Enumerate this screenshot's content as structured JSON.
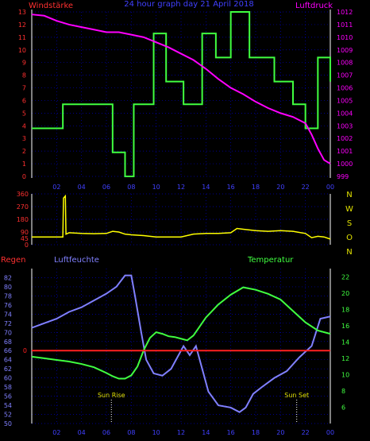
{
  "header": {
    "left": "Windstärke",
    "center": "24 hour graph day  21 April 2018",
    "right": "Luftdruck"
  },
  "colors": {
    "wind": "#40ff40",
    "pressure": "#ff00ff",
    "direction": "#ffff00",
    "humidity": "#8080ff",
    "temperature": "#40ff40",
    "rain": "#ff2020",
    "grid": "#0000c0",
    "left_axis": "#ff3030",
    "humidity_axis": "#8080ff",
    "pressure_axis": "#ff00ff",
    "temp_axis": "#40ff40",
    "x_axis": "#4040ff",
    "compass": "#e0e000"
  },
  "x_ticks": [
    "02",
    "04",
    "06",
    "08",
    "10",
    "12",
    "14",
    "16",
    "18",
    "20",
    "22",
    "00"
  ],
  "compass": [
    "N",
    "W",
    "S",
    "O",
    "N"
  ],
  "chart_data": [
    {
      "type": "line",
      "title": "24 hour graph day  21 April 2018",
      "xlabel": "",
      "xlim": [
        0,
        24
      ],
      "left_axis": {
        "label": "Windstärke",
        "ylim": [
          0,
          13
        ],
        "ticks": [
          "0",
          "1",
          "2",
          "3",
          "4",
          "5",
          "6",
          "7",
          "8",
          "9",
          "10",
          "11",
          "12",
          "13"
        ]
      },
      "right_axis": {
        "label": "Luftdruck",
        "ylim": [
          999,
          1012
        ],
        "ticks": [
          "999",
          "1000",
          "1001",
          "1002",
          "1003",
          "1004",
          "1005",
          "1006",
          "1007",
          "1008",
          "1009",
          "1010",
          "1011",
          "1012"
        ]
      },
      "series": [
        {
          "name": "Windstärke",
          "axis": "left",
          "style": "step",
          "x": [
            0,
            2.5,
            6.5,
            7.5,
            8.2,
            9.8,
            10.8,
            12.2,
            13.7,
            14.8,
            16,
            17.5,
            19.5,
            21,
            22,
            23,
            24
          ],
          "y": [
            3.8,
            5.7,
            1.9,
            0,
            5.7,
            11.3,
            7.5,
            5.7,
            11.3,
            9.4,
            13,
            9.4,
            7.5,
            5.7,
            3.8,
            9.4,
            7.5
          ]
        },
        {
          "name": "Luftdruck",
          "axis": "right",
          "x": [
            0,
            1,
            2,
            3,
            4,
            5,
            6,
            7,
            8,
            9,
            10,
            11,
            12,
            13,
            14,
            15,
            16,
            17,
            18,
            19,
            20,
            21,
            22,
            22.5,
            23,
            23.5,
            24
          ],
          "y": [
            1011.8,
            1011.7,
            1011.3,
            1011.0,
            1010.8,
            1010.6,
            1010.4,
            1010.4,
            1010.2,
            1010.0,
            1009.6,
            1009.2,
            1008.7,
            1008.2,
            1007.5,
            1006.7,
            1006.0,
            1005.5,
            1004.9,
            1004.4,
            1004.0,
            1003.7,
            1003.2,
            1002.3,
            1001.2,
            1000.3,
            1000.0
          ]
        }
      ]
    },
    {
      "type": "line",
      "xlim": [
        0,
        24
      ],
      "left_axis": {
        "ylim": [
          0,
          360
        ],
        "ticks": [
          "0",
          "45",
          "90",
          "180",
          "270",
          "360"
        ]
      },
      "series": [
        {
          "name": "",
          "x": [
            0,
            1,
            2,
            2.5,
            2.55,
            2.7,
            2.75,
            3,
            4,
            5,
            6,
            6.5,
            7,
            7.5,
            8,
            9,
            10,
            11,
            12,
            13,
            14,
            15,
            16,
            16.5,
            17,
            18,
            19,
            20,
            21,
            22,
            22.5,
            23,
            23.5,
            24
          ],
          "y": [
            55,
            55,
            55,
            55,
            330,
            345,
            75,
            85,
            80,
            78,
            80,
            95,
            90,
            75,
            70,
            65,
            55,
            55,
            55,
            75,
            80,
            80,
            85,
            115,
            110,
            100,
            95,
            100,
            95,
            80,
            50,
            60,
            55,
            40
          ]
        }
      ]
    },
    {
      "type": "line",
      "xlim": [
        0,
        24
      ],
      "left_axis": {
        "label": "Luftfeuchte",
        "ylim": [
          50,
          84
        ],
        "ticks": [
          "50",
          "52",
          "54",
          "56",
          "58",
          "60",
          "62",
          "64",
          "66",
          "68",
          "70",
          "72",
          "74",
          "76",
          "78",
          "80",
          "82"
        ]
      },
      "rain_axis": {
        "label": "Regen",
        "ticks": [
          "0"
        ]
      },
      "right_axis": {
        "label": "Temperatur",
        "ylim": [
          4,
          23
        ],
        "ticks": [
          "6",
          "8",
          "10",
          "12",
          "14",
          "16",
          "18",
          "20",
          "22"
        ]
      },
      "annotations": [
        "Sun Rise",
        "Sun Set"
      ],
      "series": [
        {
          "name": "Luftfeuchte",
          "axis": "left",
          "x": [
            0,
            1,
            2,
            3,
            4,
            5,
            6,
            6.8,
            7.5,
            8,
            8.3,
            8.8,
            9.2,
            9.8,
            10.5,
            11.2,
            11.8,
            12.2,
            12.7,
            13.2,
            13.6,
            14.2,
            15,
            16,
            16.7,
            17.2,
            17.8,
            18.5,
            19.5,
            20.5,
            21.5,
            22.5,
            23.2,
            24
          ],
          "y": [
            71,
            72,
            73,
            74.5,
            75.5,
            77,
            78.5,
            80,
            82.5,
            82.5,
            78,
            70,
            64,
            61,
            60.5,
            62,
            65,
            67,
            65,
            67,
            63,
            57,
            54,
            53.5,
            52.5,
            53.5,
            56.5,
            58,
            60,
            61.5,
            64.5,
            67,
            73,
            73.5
          ]
        },
        {
          "name": "Temperatur",
          "axis": "right",
          "x": [
            0,
            1,
            2,
            3,
            4,
            5,
            6,
            6.5,
            7,
            7.5,
            8,
            8.5,
            9,
            9.5,
            10,
            10.5,
            11,
            11.5,
            12,
            12.5,
            13,
            14,
            15,
            16,
            17,
            18,
            19,
            20,
            21,
            22,
            23,
            24
          ],
          "y": [
            12.2,
            12.0,
            11.8,
            11.6,
            11.3,
            10.9,
            10.2,
            9.8,
            9.5,
            9.5,
            9.9,
            11.0,
            13.0,
            14.5,
            15.2,
            15.0,
            14.7,
            14.6,
            14.4,
            14.2,
            14.8,
            17.0,
            18.6,
            19.8,
            20.7,
            20.4,
            19.9,
            19.2,
            17.8,
            16.4,
            15.4,
            15.0
          ]
        },
        {
          "name": "Regen",
          "axis": "rain",
          "x": [
            0,
            24
          ],
          "y": [
            0,
            0
          ]
        }
      ]
    }
  ]
}
